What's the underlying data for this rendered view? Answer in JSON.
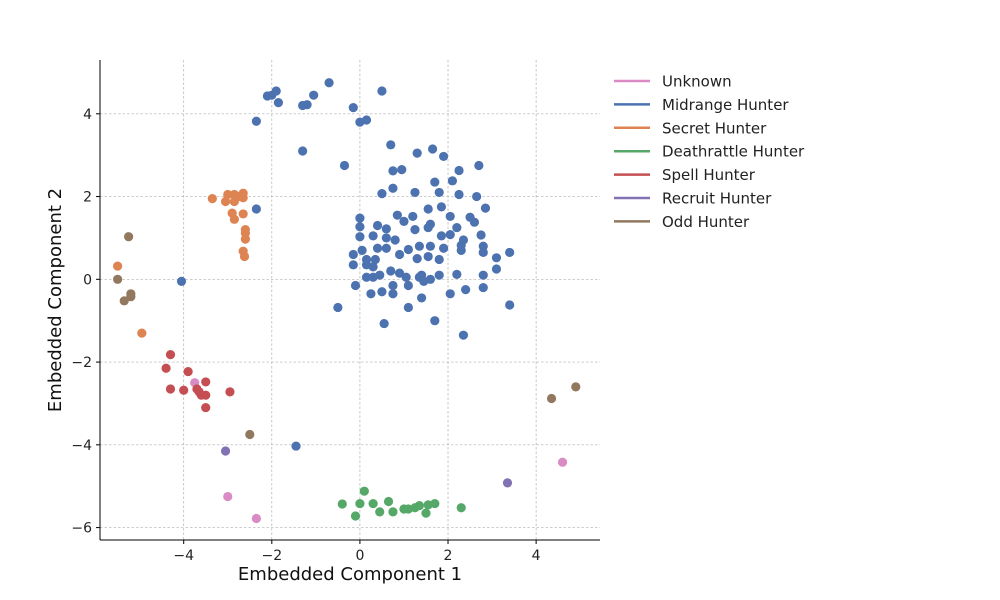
{
  "chart_data": {
    "type": "scatter",
    "xlabel": "Embedded Component 1",
    "ylabel": "Embedded Component 2",
    "xlim": [
      -5.9,
      5.45
    ],
    "ylim": [
      -6.3,
      5.3
    ],
    "xticks": [
      -4,
      -2,
      0,
      2,
      4
    ],
    "yticks": [
      -6,
      -4,
      -2,
      0,
      2,
      4
    ],
    "grid": true,
    "legend_position": "outside-right",
    "series": [
      {
        "name": "Unknown",
        "color": "#da8bc3",
        "points": [
          [
            -3.75,
            -2.5
          ],
          [
            -3.0,
            -5.25
          ],
          [
            -2.35,
            -5.78
          ],
          [
            4.6,
            -4.42
          ]
        ]
      },
      {
        "name": "Midrange Hunter",
        "color": "#4c72b0",
        "points": [
          [
            -2.1,
            4.43
          ],
          [
            -2.0,
            4.45
          ],
          [
            -1.9,
            4.55
          ],
          [
            -1.85,
            4.27
          ],
          [
            -1.3,
            4.2
          ],
          [
            -1.2,
            4.22
          ],
          [
            -1.05,
            4.45
          ],
          [
            -0.7,
            4.75
          ],
          [
            -0.15,
            4.15
          ],
          [
            0.5,
            4.55
          ],
          [
            -2.35,
            3.82
          ],
          [
            0.0,
            3.8
          ],
          [
            0.15,
            3.85
          ],
          [
            -1.3,
            3.1
          ],
          [
            -0.35,
            2.75
          ],
          [
            0.7,
            3.25
          ],
          [
            1.3,
            3.05
          ],
          [
            1.65,
            3.15
          ],
          [
            1.9,
            2.97
          ],
          [
            2.7,
            2.75
          ],
          [
            0.75,
            2.62
          ],
          [
            0.95,
            2.65
          ],
          [
            2.25,
            2.63
          ],
          [
            1.7,
            2.35
          ],
          [
            2.1,
            2.38
          ],
          [
            0.75,
            2.2
          ],
          [
            0.5,
            2.07
          ],
          [
            1.25,
            2.1
          ],
          [
            1.8,
            2.1
          ],
          [
            2.25,
            2.05
          ],
          [
            2.65,
            2.0
          ],
          [
            -2.35,
            1.7
          ],
          [
            1.55,
            1.7
          ],
          [
            1.85,
            1.75
          ],
          [
            2.85,
            1.72
          ],
          [
            0.0,
            1.48
          ],
          [
            0.85,
            1.55
          ],
          [
            1.2,
            1.52
          ],
          [
            2.05,
            1.52
          ],
          [
            2.5,
            1.5
          ],
          [
            2.6,
            1.38
          ],
          [
            0.0,
            1.27
          ],
          [
            0.4,
            1.3
          ],
          [
            0.6,
            1.22
          ],
          [
            1.0,
            1.4
          ],
          [
            1.25,
            1.2
          ],
          [
            1.55,
            1.25
          ],
          [
            1.6,
            1.33
          ],
          [
            2.2,
            1.25
          ],
          [
            2.05,
            1.08
          ],
          [
            2.75,
            1.07
          ],
          [
            0.0,
            1.03
          ],
          [
            0.3,
            1.05
          ],
          [
            0.6,
            1.0
          ],
          [
            0.8,
            0.95
          ],
          [
            1.85,
            1.05
          ],
          [
            2.35,
            0.95
          ],
          [
            2.3,
            0.82
          ],
          [
            2.8,
            0.8
          ],
          [
            3.4,
            0.65
          ],
          [
            -0.15,
            0.6
          ],
          [
            0.05,
            0.7
          ],
          [
            0.4,
            0.75
          ],
          [
            0.6,
            0.75
          ],
          [
            0.9,
            0.6
          ],
          [
            1.1,
            0.72
          ],
          [
            1.35,
            0.8
          ],
          [
            1.6,
            0.8
          ],
          [
            1.9,
            0.75
          ],
          [
            2.3,
            0.7
          ],
          [
            2.8,
            0.65
          ],
          [
            3.1,
            0.52
          ],
          [
            0.15,
            0.48
          ],
          [
            0.35,
            0.48
          ],
          [
            1.3,
            0.5
          ],
          [
            1.55,
            0.55
          ],
          [
            1.8,
            0.48
          ],
          [
            -0.15,
            0.35
          ],
          [
            0.15,
            0.35
          ],
          [
            0.3,
            0.3
          ],
          [
            0.7,
            0.2
          ],
          [
            0.9,
            0.15
          ],
          [
            1.4,
            0.1
          ],
          [
            1.8,
            0.1
          ],
          [
            2.2,
            0.12
          ],
          [
            2.8,
            0.1
          ],
          [
            3.1,
            0.25
          ],
          [
            0.15,
            0.05
          ],
          [
            0.3,
            0.05
          ],
          [
            0.45,
            0.1
          ],
          [
            1.05,
            0.05
          ],
          [
            1.35,
            0.05
          ],
          [
            1.45,
            -0.05
          ],
          [
            1.6,
            0.0
          ],
          [
            -4.05,
            -0.05
          ],
          [
            -0.1,
            -0.15
          ],
          [
            0.75,
            -0.15
          ],
          [
            1.1,
            -0.15
          ],
          [
            2.4,
            -0.25
          ],
          [
            2.8,
            -0.2
          ],
          [
            0.25,
            -0.35
          ],
          [
            0.5,
            -0.3
          ],
          [
            0.75,
            -0.35
          ],
          [
            1.4,
            -0.45
          ],
          [
            2.05,
            -0.35
          ],
          [
            -0.5,
            -0.68
          ],
          [
            1.1,
            -0.68
          ],
          [
            3.4,
            -0.62
          ],
          [
            0.55,
            -1.07
          ],
          [
            1.7,
            -1.0
          ],
          [
            2.35,
            -1.35
          ],
          [
            -1.45,
            -4.03
          ]
        ]
      },
      {
        "name": "Secret Hunter",
        "color": "#dd8452",
        "points": [
          [
            -3.35,
            1.95
          ],
          [
            -3.0,
            2.05
          ],
          [
            -2.85,
            2.05
          ],
          [
            -2.65,
            2.08
          ],
          [
            -2.75,
            2.0
          ],
          [
            -2.65,
            1.97
          ],
          [
            -3.05,
            1.88
          ],
          [
            -2.85,
            1.88
          ],
          [
            -2.9,
            1.6
          ],
          [
            -2.65,
            1.58
          ],
          [
            -2.85,
            1.45
          ],
          [
            -2.6,
            1.2
          ],
          [
            -2.6,
            1.12
          ],
          [
            -2.6,
            0.97
          ],
          [
            -2.65,
            0.68
          ],
          [
            -2.62,
            0.55
          ],
          [
            -5.5,
            0.32
          ],
          [
            -4.95,
            -1.3
          ]
        ]
      },
      {
        "name": "Deathrattle Hunter",
        "color": "#55a868",
        "points": [
          [
            0.1,
            -5.12
          ],
          [
            -0.4,
            -5.43
          ],
          [
            0.0,
            -5.42
          ],
          [
            0.3,
            -5.42
          ],
          [
            0.65,
            -5.37
          ],
          [
            1.0,
            -5.55
          ],
          [
            1.1,
            -5.55
          ],
          [
            1.25,
            -5.52
          ],
          [
            1.35,
            -5.47
          ],
          [
            1.55,
            -5.45
          ],
          [
            1.7,
            -5.42
          ],
          [
            2.3,
            -5.52
          ],
          [
            -0.1,
            -5.72
          ],
          [
            0.45,
            -5.62
          ],
          [
            0.75,
            -5.62
          ],
          [
            1.5,
            -5.65
          ]
        ]
      },
      {
        "name": "Spell Hunter",
        "color": "#c44e52",
        "points": [
          [
            -4.3,
            -1.82
          ],
          [
            -4.4,
            -2.15
          ],
          [
            -3.9,
            -2.23
          ],
          [
            -3.5,
            -2.48
          ],
          [
            -4.3,
            -2.65
          ],
          [
            -4.0,
            -2.68
          ],
          [
            -3.7,
            -2.65
          ],
          [
            -3.65,
            -2.72
          ],
          [
            -3.6,
            -2.8
          ],
          [
            -3.5,
            -2.8
          ],
          [
            -2.95,
            -2.72
          ],
          [
            -3.5,
            -3.1
          ]
        ]
      },
      {
        "name": "Recruit Hunter",
        "color": "#8172b3",
        "points": [
          [
            -3.05,
            -4.15
          ],
          [
            3.35,
            -4.92
          ]
        ]
      },
      {
        "name": "Odd Hunter",
        "color": "#937860",
        "points": [
          [
            -5.25,
            1.03
          ],
          [
            -5.5,
            0.0
          ],
          [
            -5.2,
            -0.35
          ],
          [
            -5.2,
            -0.42
          ],
          [
            -5.35,
            -0.52
          ],
          [
            -2.5,
            -3.75
          ],
          [
            4.35,
            -2.88
          ],
          [
            4.9,
            -2.6
          ]
        ]
      }
    ]
  }
}
